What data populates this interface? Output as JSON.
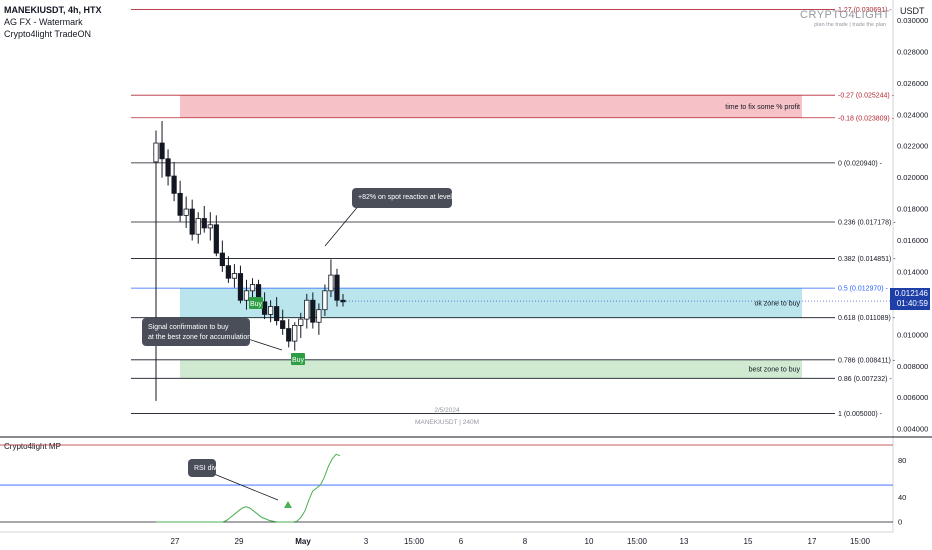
{
  "header": {
    "symbol": "MANEKIUSDT, 4h, HTX",
    "indicator_1": "AG FX - Watermark",
    "indicator_2": "Crypto4light TradeON"
  },
  "watermark": {
    "title": "CRYPTO4LIGHT",
    "tagline": "plan the trade | trade the plan",
    "center_date": "2/5/2024",
    "center_symbol": "MANEKIUSDT | 240M"
  },
  "price_axis": {
    "currency": "USDT"
  },
  "last_price": {
    "value": "0.012146",
    "countdown": "01:40:59"
  },
  "colors": {
    "up": "#ffffff",
    "down": "#131722",
    "profit_zone": "#f4b6bd",
    "ok_zone": "#aee0ea",
    "best_zone": "#c8e6c9",
    "buy_marker": "#2e9e44",
    "rsi_line": "#4caf50",
    "level_red": "#b22833",
    "level_blue": "#2962ff"
  },
  "chart_data": [
    {
      "type": "candlestick",
      "y_axis": {
        "ylim": [
          0.0035,
          0.0313
        ],
        "ticks": [
          "0.030000",
          "0.028000",
          "0.026000",
          "0.024000",
          "0.022000",
          "0.020000",
          "0.018000",
          "0.016000",
          "0.014000",
          "0.012000",
          "0.010000",
          "0.008000",
          "0.006000",
          "0.004000"
        ]
      },
      "x_axis": {
        "ticks": [
          "27",
          "29",
          "May",
          "3",
          "15:00",
          "6",
          "8",
          "10",
          "15:00",
          "13",
          "15",
          "17",
          "15:00"
        ]
      },
      "fib_levels": [
        {
          "label": "-0.27 (0.025244)",
          "value": 0.025244,
          "color": "level_red"
        },
        {
          "label": "-0.18 (0.023809)",
          "value": 0.023809,
          "color": "level_red"
        },
        {
          "label": "0 (0.020940)",
          "value": 0.02094,
          "color": "neutral"
        },
        {
          "label": "0.236 (0.017178)",
          "value": 0.017178,
          "color": "neutral"
        },
        {
          "label": "0.382 (0.014851)",
          "value": 0.014851,
          "color": "neutral"
        },
        {
          "label": "0.5 (0.012970)",
          "value": 0.01297,
          "color": "level_blue"
        },
        {
          "label": "0.618 (0.011089)",
          "value": 0.011089,
          "color": "neutral"
        },
        {
          "label": "0.786 (0.008411)",
          "value": 0.008411,
          "color": "neutral"
        },
        {
          "label": "0.86 (0.007232)",
          "value": 0.007232,
          "color": "neutral"
        },
        {
          "label": "1 (0.005000)",
          "value": 0.005,
          "color": "neutral"
        },
        {
          "label": "1.27 (0.030691)",
          "value": 0.030691,
          "color": "level_red"
        }
      ],
      "zones": [
        {
          "label": "time to fix some % profit",
          "from": 0.023809,
          "to": 0.025244,
          "color": "profit_zone"
        },
        {
          "label": "ok zone to buy",
          "from": 0.011089,
          "to": 0.01297,
          "color": "ok_zone"
        },
        {
          "label": "best zone to buy",
          "from": 0.007232,
          "to": 0.008411,
          "color": "best_zone"
        }
      ],
      "annotations": [
        {
          "label": "+82% on spot reaction at level"
        },
        {
          "label": "Signal confirmation to buy at the best zone for accumulation"
        }
      ],
      "buy_signals": [
        "Buy",
        "Buy"
      ],
      "candles": [
        [
          0.021,
          0.023,
          0.0058,
          0.0222
        ],
        [
          0.0222,
          0.0236,
          0.02,
          0.0212
        ],
        [
          0.0212,
          0.0218,
          0.0195,
          0.0201
        ],
        [
          0.0201,
          0.021,
          0.0185,
          0.019
        ],
        [
          0.019,
          0.0198,
          0.0172,
          0.0176
        ],
        [
          0.0176,
          0.0188,
          0.0168,
          0.018
        ],
        [
          0.018,
          0.0186,
          0.016,
          0.0164
        ],
        [
          0.0164,
          0.0178,
          0.0158,
          0.0174
        ],
        [
          0.0174,
          0.0182,
          0.0165,
          0.0168
        ],
        [
          0.0168,
          0.0178,
          0.016,
          0.017
        ],
        [
          0.017,
          0.0176,
          0.015,
          0.0152
        ],
        [
          0.0152,
          0.016,
          0.014,
          0.0144
        ],
        [
          0.0144,
          0.015,
          0.0133,
          0.0136
        ],
        [
          0.0136,
          0.0145,
          0.013,
          0.0139
        ],
        [
          0.0139,
          0.0144,
          0.012,
          0.0122
        ],
        [
          0.0122,
          0.0135,
          0.0116,
          0.0128
        ],
        [
          0.0128,
          0.0136,
          0.012,
          0.0132
        ],
        [
          0.0132,
          0.0135,
          0.0118,
          0.0121
        ],
        [
          0.0121,
          0.0127,
          0.011,
          0.0113
        ],
        [
          0.0113,
          0.0122,
          0.0108,
          0.0118
        ],
        [
          0.0118,
          0.0124,
          0.0106,
          0.0109
        ],
        [
          0.0109,
          0.0116,
          0.01,
          0.0104
        ],
        [
          0.0104,
          0.011,
          0.0092,
          0.0096
        ],
        [
          0.0096,
          0.0108,
          0.009,
          0.0106
        ],
        [
          0.0106,
          0.0114,
          0.0098,
          0.011
        ],
        [
          0.011,
          0.0126,
          0.0104,
          0.0122
        ],
        [
          0.0122,
          0.0127,
          0.0104,
          0.0108
        ],
        [
          0.0108,
          0.012,
          0.01,
          0.0116
        ],
        [
          0.0116,
          0.0132,
          0.0112,
          0.0128
        ],
        [
          0.0128,
          0.0148,
          0.0124,
          0.0138
        ],
        [
          0.0138,
          0.0142,
          0.0118,
          0.0122
        ],
        [
          0.0122,
          0.0126,
          0.0118,
          0.0121
        ]
      ]
    },
    {
      "type": "line",
      "title": "Crypto4light MP",
      "ylim": [
        0,
        100
      ],
      "y_ticks": [
        "80",
        "40",
        "0"
      ],
      "levels": [
        {
          "value": 100,
          "color": "level_red"
        },
        {
          "value": 48,
          "color": "level_blue"
        },
        {
          "value": 0,
          "color": "neutral"
        }
      ],
      "annotation": "RSI div",
      "values": [
        0,
        0,
        0,
        0,
        0,
        0,
        0,
        0,
        0,
        0,
        0,
        0,
        0,
        0,
        0,
        0,
        0,
        0,
        2,
        6,
        10,
        14,
        18,
        20,
        18,
        14,
        10,
        6,
        4,
        2,
        1,
        0,
        0,
        0,
        0,
        0,
        1,
        6,
        14,
        28,
        40,
        44,
        48,
        58,
        72,
        82,
        88,
        86
      ]
    }
  ]
}
